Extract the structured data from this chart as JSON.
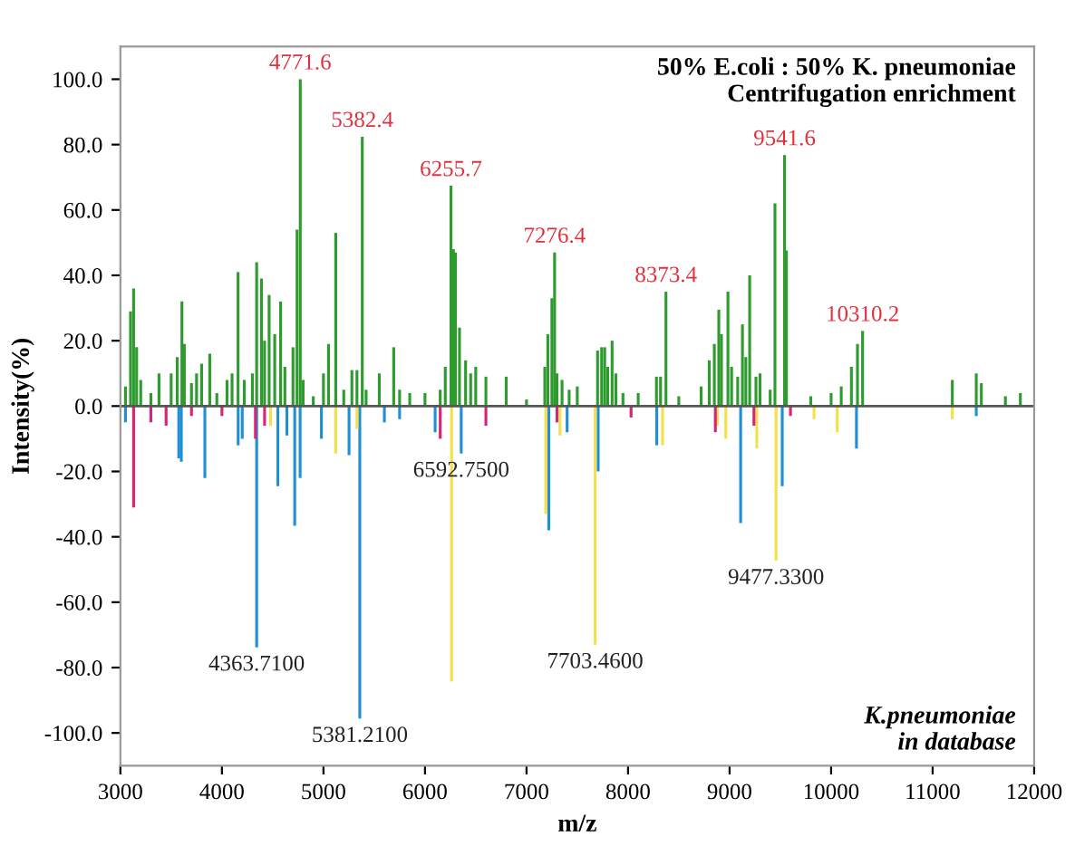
{
  "chart_data": {
    "type": "bar",
    "xlabel": "m/z",
    "ylabel": "Intensity(%)",
    "xlim": [
      3000,
      12000
    ],
    "xticks": [
      3000,
      4000,
      5000,
      6000,
      7000,
      8000,
      9000,
      10000,
      11000,
      12000
    ],
    "ylim": [
      -110,
      110
    ],
    "yticks": [
      {
        "value": -100,
        "label": "-100.0"
      },
      {
        "value": -80,
        "label": "-80.0"
      },
      {
        "value": -60,
        "label": "-60.0"
      },
      {
        "value": -40,
        "label": "-40.0"
      },
      {
        "value": -20,
        "label": "-20.0"
      },
      {
        "value": 0,
        "label": "0.0"
      },
      {
        "value": 20,
        "label": "20.0"
      },
      {
        "value": 40,
        "label": "40.0"
      },
      {
        "value": 60,
        "label": "60.0"
      },
      {
        "value": 80,
        "label": "80.0"
      },
      {
        "value": 100,
        "label": "100.0"
      }
    ],
    "grid": false,
    "legend": false,
    "ref_lines": [
      {
        "axis": "y",
        "value": 0,
        "color": "#555555"
      }
    ],
    "series": [
      {
        "color": "#2e9b2e",
        "x": [
          3050,
          3100,
          3130,
          3160,
          3200,
          3300,
          3380,
          3500,
          3560,
          3606,
          3630,
          3700,
          3750,
          3800,
          3880,
          3950,
          4050,
          4100,
          4159,
          4220,
          4300,
          4342,
          4390,
          4420,
          4465,
          4520,
          4578,
          4620,
          4700,
          4740,
          4771.6,
          4800,
          4900,
          5000,
          5050,
          5121,
          5200,
          5280,
          5330,
          5382.4,
          5420,
          5550,
          5692,
          5750,
          5850,
          6000,
          6150,
          6200,
          6255.7,
          6280,
          6300,
          6340,
          6400,
          6450,
          6500,
          6600,
          6800,
          7000,
          7180,
          7210,
          7250,
          7276.4,
          7300,
          7350,
          7420,
          7500,
          7700,
          7740,
          7770,
          7800,
          7843,
          7880,
          7950,
          8100,
          8280,
          8320,
          8373.4,
          8500,
          8720,
          8800,
          8850,
          8894,
          8920,
          8984,
          9020,
          9080,
          9127,
          9160,
          9198,
          9260,
          9300,
          9400,
          9447,
          9541.6,
          9560,
          9800,
          10000,
          10100,
          10200,
          10260,
          10310.2,
          11194,
          11430,
          11480,
          11717,
          11864
        ],
        "values": [
          6,
          29,
          36,
          18,
          8,
          4,
          10,
          10,
          15,
          32,
          19,
          7,
          10,
          13,
          16,
          4,
          8,
          10,
          41,
          8,
          10,
          44,
          39,
          20,
          34,
          22,
          32,
          12,
          18,
          54,
          100,
          8,
          3,
          10,
          19,
          53,
          5,
          11,
          11,
          82.4,
          5,
          10,
          18,
          5,
          4,
          4,
          5,
          12,
          67.4,
          48,
          47,
          24,
          14,
          10,
          12,
          9,
          9,
          2,
          12,
          22,
          33,
          47,
          10,
          8,
          5,
          6,
          17,
          18,
          18,
          12,
          20,
          10,
          4,
          4,
          9,
          9,
          35,
          3,
          6,
          14,
          19,
          29.5,
          22,
          35,
          12,
          9,
          25,
          15,
          40,
          9,
          10,
          5,
          62,
          76.8,
          47.6,
          3,
          4,
          6,
          12,
          19,
          23,
          8,
          10,
          7,
          3,
          4
        ]
      },
      {
        "color": "#1f8fd6",
        "x": [
          3050,
          3575,
          3600,
          3832,
          4160,
          4200,
          4342,
          4551,
          4640,
          4717,
          4770,
          4980,
          5252,
          5358,
          5600,
          5750,
          6100,
          6357,
          7219,
          7400,
          7706,
          8283,
          9109,
          9519,
          10250,
          11430
        ],
        "values": [
          -5,
          -16,
          -17,
          -22,
          -12,
          -10,
          -73.8,
          -24.5,
          -9,
          -36.6,
          -22,
          -10,
          -15,
          -95.6,
          -5,
          -4,
          -8,
          -14.5,
          -38,
          -8,
          -20,
          -12,
          -35.8,
          -24.5,
          -13,
          -3
        ]
      },
      {
        "color": "#f5e04a",
        "x": [
          4480,
          5121,
          5330,
          6262,
          7190,
          7330,
          7676,
          8340,
          8880,
          8963,
          9268,
          9458,
          9832,
          10060,
          11194
        ],
        "values": [
          -6,
          -14.5,
          -7,
          -84.3,
          -33,
          -9,
          -73,
          -12,
          -6,
          -10,
          -13,
          -47.3,
          -4,
          -8,
          -4
        ]
      },
      {
        "color": "#d6247a",
        "x": [
          3130,
          3300,
          3450,
          3700,
          4000,
          4330,
          4420,
          6150,
          6600,
          7300,
          8030,
          8860,
          9240,
          9600
        ],
        "values": [
          -31,
          -5,
          -6,
          -3,
          -3,
          -10,
          -6,
          -10,
          -6,
          -5,
          -3.5,
          -8,
          -6,
          -3
        ]
      }
    ],
    "annotations": [
      "50% E.coli : 50% K. pneumoniae\nCentrifugation enrichment",
      {
        "text": "4771.6",
        "x": 4771.6,
        "y": 100
      },
      {
        "text": "5382.4",
        "x": 5382.4,
        "y": 82.4
      },
      {
        "text": "6255.7",
        "x": 6255.7,
        "y": 67.4
      },
      {
        "text": "7276.4",
        "x": 7276.4,
        "y": 47
      },
      {
        "text": "8373.4",
        "x": 8373.4,
        "y": 35
      },
      {
        "text": "9541.6",
        "x": 9541.6,
        "y": 76.8
      },
      {
        "text": "10310.2",
        "x": 10310.2,
        "y": 23
      },
      {
        "text": "4363.7100",
        "x": 4342,
        "y": -73.8
      },
      {
        "text": "5381.2100",
        "x": 5358,
        "y": -95.6
      },
      {
        "text": "6592.7500",
        "x": 6357,
        "y": -14.5
      },
      {
        "text": "7703.4600",
        "x": 7676,
        "y": -73
      },
      {
        "text": "9477.3300",
        "x": 9458,
        "y": -47.3
      },
      "K.pneumoniae\n in database"
    ]
  }
}
